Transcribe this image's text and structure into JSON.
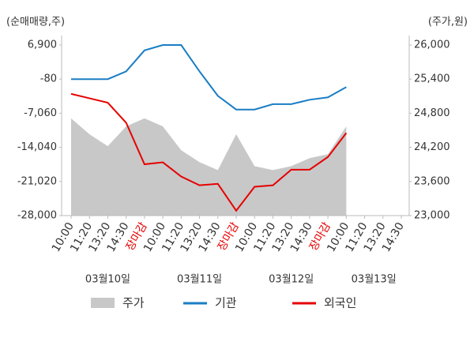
{
  "chart_data": {
    "type": "line",
    "y_axis_label": "(순매매량,주)",
    "y2_axis_label": "(주가,원)",
    "categories": [
      "10:00",
      "11:20",
      "13:20",
      "14:30",
      "장마감",
      "10:00",
      "11:20",
      "13:20",
      "14:30",
      "장마감",
      "10:00",
      "11:20",
      "13:20",
      "14:30",
      "장마감",
      "10:00",
      "11:20",
      "13:20",
      "14:30"
    ],
    "date_labels": [
      "03월10일",
      "03월11일",
      "03월12일",
      "03월13일"
    ],
    "series": [
      {
        "name": "주가",
        "kind": "area",
        "axis": "y2",
        "color": "#c8c8c8",
        "values": [
          24710,
          24430,
          24220,
          24570,
          24710,
          24570,
          24150,
          23940,
          23800,
          24430,
          23870,
          23800,
          23870,
          24010,
          24080,
          24570,
          null,
          null,
          null
        ]
      },
      {
        "name": "기관",
        "kind": "line",
        "color": "#1a7dc4",
        "values": [
          -80,
          -80,
          -80,
          1500,
          5800,
          6900,
          6900,
          1500,
          -3500,
          -6300,
          -6300,
          -5200,
          -5200,
          -4300,
          -3800,
          -1700,
          null,
          null,
          null
        ]
      },
      {
        "name": "외국인",
        "kind": "line",
        "color": "#e60000",
        "values": [
          -3100,
          -4000,
          -4900,
          -9000,
          -17500,
          -17100,
          -20000,
          -21800,
          -21500,
          -27000,
          -22100,
          -21800,
          -18600,
          -18600,
          -16000,
          -11100,
          null,
          null,
          null
        ]
      }
    ],
    "ylim": [
      -28000,
      6900
    ],
    "yticks": [
      {
        "value": 6900,
        "label": "6,900"
      },
      -80,
      {
        "value": -7060,
        "label": "-7,060"
      },
      {
        "value": -14040,
        "label": "-14,040"
      },
      {
        "value": -21020,
        "label": "-21,020"
      },
      {
        "value": -28000,
        "label": "-28,000"
      }
    ],
    "y2lim": [
      23000,
      26000
    ],
    "y2ticks": [
      {
        "value": 26000,
        "label": "26,000"
      },
      {
        "value": 25400,
        "label": "25,400"
      },
      {
        "value": 24800,
        "label": "24,800"
      },
      {
        "value": 24200,
        "label": "24,200"
      },
      {
        "value": 23600,
        "label": "23,600"
      },
      {
        "value": 23000,
        "label": "23,000"
      }
    ]
  }
}
